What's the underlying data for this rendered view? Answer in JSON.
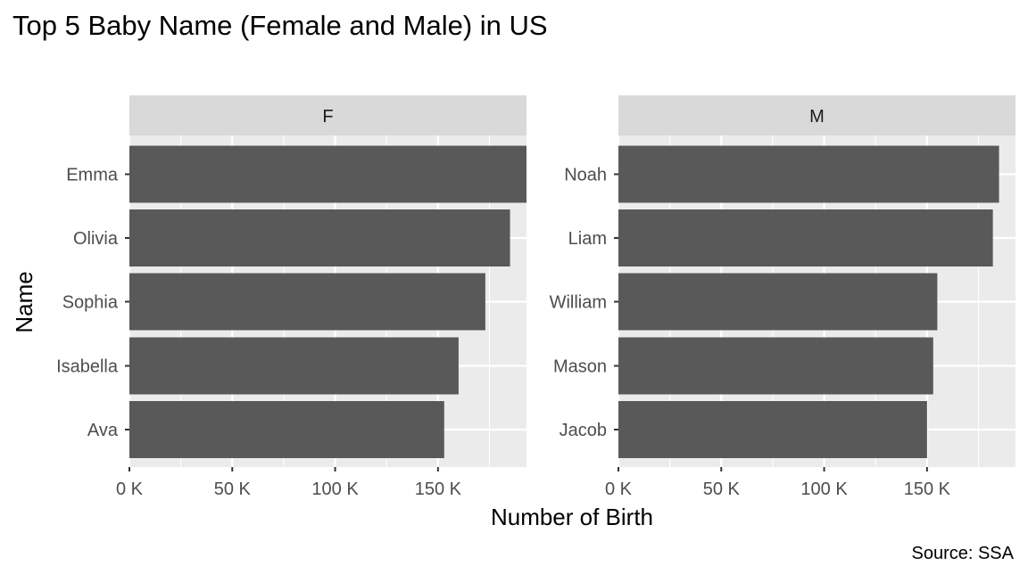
{
  "chart_data": {
    "type": "bar",
    "orientation": "horizontal",
    "faceted": true,
    "title": "Top 5 Baby Name (Female and Male) in US",
    "xlabel": "Number of Birth",
    "ylabel": "Name",
    "caption": "Source: SSA",
    "xlim": [
      0,
      193000
    ],
    "x_ticks": [
      0,
      50000,
      100000,
      150000
    ],
    "x_tick_labels": [
      "0 K",
      "50 K",
      "100 K",
      "150 K"
    ],
    "grid": true,
    "legend": "none",
    "colors": {
      "bar": "#595959",
      "panel_background": "#ebebeb",
      "grid_major": "#ffffff",
      "strip_background": "#d9d9d9",
      "tick_label": "#4d4d4d",
      "axis_tick": "#333333"
    },
    "facets": [
      {
        "label": "F",
        "categories": [
          "Emma",
          "Olivia",
          "Sophia",
          "Isabella",
          "Ava"
        ],
        "values": [
          193000,
          185000,
          173000,
          160000,
          153000
        ]
      },
      {
        "label": "M",
        "categories": [
          "Noah",
          "Liam",
          "William",
          "Mason",
          "Jacob"
        ],
        "values": [
          185000,
          182000,
          155000,
          153000,
          150000
        ]
      }
    ]
  }
}
